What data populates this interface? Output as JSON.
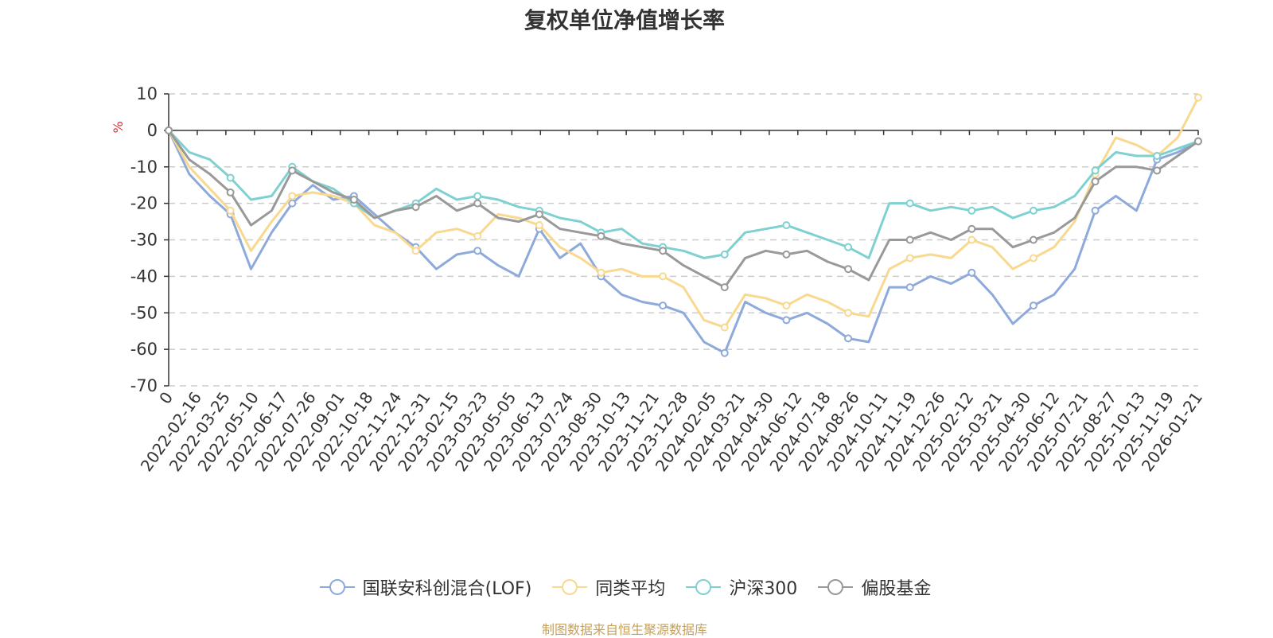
{
  "chart_data": {
    "type": "line",
    "title": "复权单位净值增长率",
    "ylabel": "%",
    "xlabel": "",
    "ylim": [
      -70,
      10
    ],
    "yticks": [
      10,
      0,
      -10,
      -20,
      -30,
      -40,
      -50,
      -60,
      -70
    ],
    "x_tick_labels": [
      "0",
      "2022-02-16",
      "2022-03-25",
      "2022-05-10",
      "2022-06-17",
      "2022-07-26",
      "2022-09-01",
      "2022-10-18",
      "2022-11-24",
      "2022-12-31",
      "2023-02-15",
      "2023-03-23",
      "2023-05-05",
      "2023-06-13",
      "2023-07-24",
      "2023-08-30",
      "2023-10-13",
      "2023-11-21",
      "2023-12-28",
      "2024-02-05",
      "2024-03-21",
      "2024-04-30",
      "2024-06-12",
      "2024-07-18",
      "2024-08-26",
      "2024-10-11",
      "2024-11-19",
      "2024-12-26",
      "2025-02-12",
      "2025-03-21",
      "2025-04-30",
      "2025-06-12",
      "2025-07-21",
      "2025-08-27",
      "2025-10-13",
      "2025-11-19",
      "2026-01-21"
    ],
    "grid": true,
    "legend_position": "bottom-center",
    "series": [
      {
        "name": "国联安科创混合(LOF)",
        "color": "#8eaadb",
        "values": [
          0,
          -12,
          -18,
          -23,
          -38,
          -28,
          -20,
          -15,
          -19,
          -18,
          -23,
          -28,
          -32,
          -38,
          -34,
          -33,
          -37,
          -40,
          -27,
          -35,
          -31,
          -40,
          -45,
          -47,
          -48,
          -50,
          -58,
          -61,
          -47,
          -50,
          -52,
          -50,
          -53,
          -57,
          -58,
          -43,
          -43,
          -40,
          -42,
          -39,
          -45,
          -53,
          -48,
          -45,
          -38,
          -22,
          -18,
          -22,
          -8,
          -6,
          -3
        ]
      },
      {
        "name": "同类平均",
        "color": "#f9d88f",
        "values": [
          0,
          -10,
          -16,
          -22,
          -33,
          -25,
          -18,
          -17,
          -18,
          -20,
          -26,
          -28,
          -33,
          -28,
          -27,
          -29,
          -23,
          -24,
          -26,
          -32,
          -35,
          -39,
          -38,
          -40,
          -40,
          -43,
          -52,
          -54,
          -45,
          -46,
          -48,
          -45,
          -47,
          -50,
          -51,
          -38,
          -35,
          -34,
          -35,
          -30,
          -32,
          -38,
          -35,
          -32,
          -25,
          -12,
          -2,
          -4,
          -7,
          -2,
          9
        ]
      },
      {
        "name": "沪深300",
        "color": "#7fd1d1",
        "values": [
          0,
          -6,
          -8,
          -13,
          -19,
          -18,
          -10,
          -14,
          -16,
          -20,
          -24,
          -22,
          -20,
          -16,
          -19,
          -18,
          -19,
          -21,
          -22,
          -24,
          -25,
          -28,
          -27,
          -31,
          -32,
          -33,
          -35,
          -34,
          -28,
          -27,
          -26,
          -28,
          -30,
          -32,
          -35,
          -20,
          -20,
          -22,
          -21,
          -22,
          -21,
          -24,
          -22,
          -21,
          -18,
          -11,
          -6,
          -7,
          -7,
          -5,
          -3
        ]
      },
      {
        "name": "偏股基金",
        "color": "#999999",
        "values": [
          0,
          -8,
          -12,
          -17,
          -26,
          -22,
          -11,
          -14,
          -17,
          -19,
          -24,
          -22,
          -21,
          -18,
          -22,
          -20,
          -24,
          -25,
          -23,
          -27,
          -28,
          -29,
          -31,
          -32,
          -33,
          -37,
          -40,
          -43,
          -35,
          -33,
          -34,
          -33,
          -36,
          -38,
          -41,
          -30,
          -30,
          -28,
          -30,
          -27,
          -27,
          -32,
          -30,
          -28,
          -24,
          -14,
          -10,
          -10,
          -11,
          -7,
          -3
        ]
      }
    ]
  },
  "source_note": "制图数据来自恒生聚源数据库"
}
